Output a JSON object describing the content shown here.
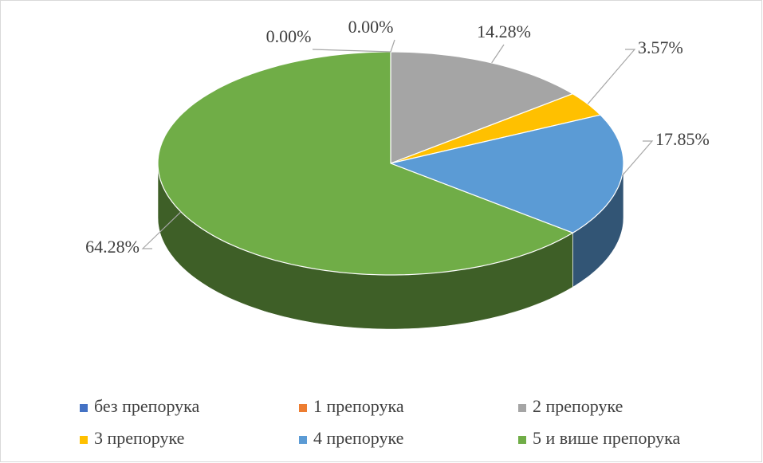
{
  "chart_data": {
    "type": "pie3d",
    "categories": [
      "без препорука",
      "1 препорука",
      "2 препоруке",
      "3 препоруке",
      "4 препоруке",
      "5 и више препорука"
    ],
    "values": [
      0,
      0,
      14.28,
      3.57,
      17.85,
      64.28
    ],
    "value_labels": [
      "0.00%",
      "0.00%",
      "14.28%",
      "3.57%",
      "17.85%",
      "64.28%"
    ],
    "colors": [
      "#4472c4",
      "#ed7d31",
      "#a5a5a5",
      "#ffc000",
      "#5b9bd5",
      "#70ad47"
    ],
    "legend": "bottom"
  }
}
